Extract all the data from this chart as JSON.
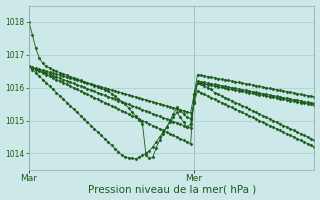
{
  "background_color": "#cce8e8",
  "grid_color": "#aacccc",
  "line_color": "#1a5c1a",
  "xlabel": "Pression niveau de la mer( hPa )",
  "xlabel_fontsize": 7.5,
  "ylim": [
    1013.5,
    1018.5
  ],
  "yticks": [
    1014,
    1015,
    1016,
    1017,
    1018
  ],
  "xtick_labels": [
    "Mar",
    "Mer"
  ],
  "xtick_positions": [
    0,
    48
  ],
  "total_steps": 84,
  "series": [
    {
      "y": [
        1018.0,
        1017.6,
        1017.2,
        1016.9,
        1016.75,
        1016.65,
        1016.6,
        1016.55,
        1016.5,
        1016.46,
        1016.42,
        1016.38,
        1016.34,
        1016.3,
        1016.26,
        1016.22,
        1016.18,
        1016.14,
        1016.1,
        1016.06,
        1016.02,
        1015.98,
        1015.94,
        1015.9,
        1015.82,
        1015.74,
        1015.66,
        1015.58,
        1015.5,
        1015.38,
        1015.26,
        1015.14,
        1015.02,
        1014.9,
        1013.96,
        1013.85,
        1013.88,
        1014.18,
        1014.4,
        1014.6,
        1014.8,
        1015.0,
        1015.2,
        1015.4,
        1015.3,
        1015.2,
        1015.1,
        1015.05,
        1015.55,
        1016.15,
        1016.1,
        1016.05,
        1016.0,
        1015.95,
        1015.85,
        1015.8,
        1015.75,
        1015.7,
        1015.65,
        1015.6,
        1015.55,
        1015.5,
        1015.45,
        1015.4,
        1015.35,
        1015.3,
        1015.25,
        1015.2,
        1015.15,
        1015.1,
        1015.05,
        1015.0,
        1014.95,
        1014.9,
        1014.85,
        1014.8,
        1014.75,
        1014.7,
        1014.65,
        1014.6,
        1014.55,
        1014.5,
        1014.45,
        1014.4
      ]
    },
    {
      "y": [
        1016.65,
        1016.62,
        1016.59,
        1016.56,
        1016.53,
        1016.5,
        1016.47,
        1016.44,
        1016.41,
        1016.38,
        1016.35,
        1016.32,
        1016.29,
        1016.26,
        1016.23,
        1016.2,
        1016.17,
        1016.14,
        1016.11,
        1016.08,
        1016.05,
        1016.02,
        1015.99,
        1015.96,
        1015.93,
        1015.9,
        1015.87,
        1015.84,
        1015.81,
        1015.78,
        1015.75,
        1015.72,
        1015.69,
        1015.66,
        1015.63,
        1015.6,
        1015.57,
        1015.54,
        1015.51,
        1015.48,
        1015.45,
        1015.42,
        1015.39,
        1015.36,
        1015.33,
        1015.3,
        1015.27,
        1015.24,
        1015.8,
        1016.4,
        1016.38,
        1016.36,
        1016.34,
        1016.32,
        1016.3,
        1016.28,
        1016.26,
        1016.24,
        1016.22,
        1016.2,
        1016.18,
        1016.16,
        1016.14,
        1016.12,
        1016.1,
        1016.08,
        1016.06,
        1016.04,
        1016.02,
        1016.0,
        1015.98,
        1015.96,
        1015.94,
        1015.92,
        1015.9,
        1015.88,
        1015.86,
        1015.84,
        1015.82,
        1015.8,
        1015.78,
        1015.76,
        1015.74,
        1015.72
      ]
    },
    {
      "y": [
        1016.65,
        1016.61,
        1016.57,
        1016.53,
        1016.49,
        1016.45,
        1016.41,
        1016.37,
        1016.33,
        1016.29,
        1016.25,
        1016.21,
        1016.17,
        1016.13,
        1016.09,
        1016.05,
        1016.01,
        1015.97,
        1015.93,
        1015.89,
        1015.85,
        1015.81,
        1015.77,
        1015.73,
        1015.69,
        1015.65,
        1015.61,
        1015.57,
        1015.53,
        1015.49,
        1015.45,
        1015.41,
        1015.37,
        1015.33,
        1015.29,
        1015.25,
        1015.21,
        1015.17,
        1015.13,
        1015.09,
        1015.05,
        1015.01,
        1014.97,
        1014.93,
        1014.89,
        1014.85,
        1014.81,
        1014.77,
        1015.6,
        1016.2,
        1016.18,
        1016.16,
        1016.14,
        1016.12,
        1016.1,
        1016.08,
        1016.06,
        1016.04,
        1016.02,
        1016.0,
        1015.98,
        1015.96,
        1015.94,
        1015.92,
        1015.9,
        1015.88,
        1015.86,
        1015.84,
        1015.82,
        1015.8,
        1015.78,
        1015.76,
        1015.74,
        1015.72,
        1015.7,
        1015.68,
        1015.66,
        1015.64,
        1015.62,
        1015.6,
        1015.58,
        1015.56,
        1015.54,
        1015.52
      ]
    },
    {
      "y": [
        1016.65,
        1016.55,
        1016.45,
        1016.35,
        1016.25,
        1016.15,
        1016.05,
        1015.95,
        1015.85,
        1015.75,
        1015.65,
        1015.55,
        1015.45,
        1015.35,
        1015.25,
        1015.15,
        1015.05,
        1014.95,
        1014.85,
        1014.75,
        1014.65,
        1014.55,
        1014.45,
        1014.35,
        1014.25,
        1014.15,
        1014.05,
        1013.95,
        1013.9,
        1013.87,
        1013.85,
        1013.84,
        1013.88,
        1013.94,
        1014.0,
        1014.08,
        1014.2,
        1014.35,
        1014.5,
        1014.65,
        1014.8,
        1014.95,
        1015.1,
        1015.25,
        1015.1,
        1014.95,
        1014.8,
        1014.9,
        1015.55,
        1015.9,
        1015.85,
        1015.8,
        1015.75,
        1015.7,
        1015.65,
        1015.6,
        1015.55,
        1015.5,
        1015.45,
        1015.4,
        1015.35,
        1015.3,
        1015.25,
        1015.2,
        1015.15,
        1015.1,
        1015.05,
        1015.0,
        1014.95,
        1014.9,
        1014.85,
        1014.8,
        1014.75,
        1014.7,
        1014.65,
        1014.6,
        1014.55,
        1014.5,
        1014.45,
        1014.4,
        1014.35,
        1014.3,
        1014.25,
        1014.2
      ]
    },
    {
      "y": [
        1016.65,
        1016.6,
        1016.55,
        1016.5,
        1016.45,
        1016.4,
        1016.35,
        1016.3,
        1016.25,
        1016.2,
        1016.15,
        1016.1,
        1016.05,
        1016.0,
        1015.95,
        1015.9,
        1015.85,
        1015.8,
        1015.75,
        1015.7,
        1015.65,
        1015.6,
        1015.55,
        1015.5,
        1015.45,
        1015.4,
        1015.35,
        1015.3,
        1015.25,
        1015.2,
        1015.15,
        1015.1,
        1015.05,
        1015.0,
        1014.95,
        1014.9,
        1014.85,
        1014.8,
        1014.75,
        1014.7,
        1014.65,
        1014.6,
        1014.55,
        1014.5,
        1014.45,
        1014.4,
        1014.35,
        1014.3,
        1015.8,
        1016.15,
        1016.13,
        1016.11,
        1016.09,
        1016.07,
        1016.05,
        1016.03,
        1016.01,
        1015.99,
        1015.97,
        1015.95,
        1015.93,
        1015.91,
        1015.89,
        1015.87,
        1015.85,
        1015.83,
        1015.81,
        1015.79,
        1015.77,
        1015.75,
        1015.73,
        1015.71,
        1015.69,
        1015.67,
        1015.65,
        1015.63,
        1015.61,
        1015.59,
        1015.57,
        1015.55,
        1015.53,
        1015.51,
        1015.49,
        1015.47
      ]
    }
  ]
}
